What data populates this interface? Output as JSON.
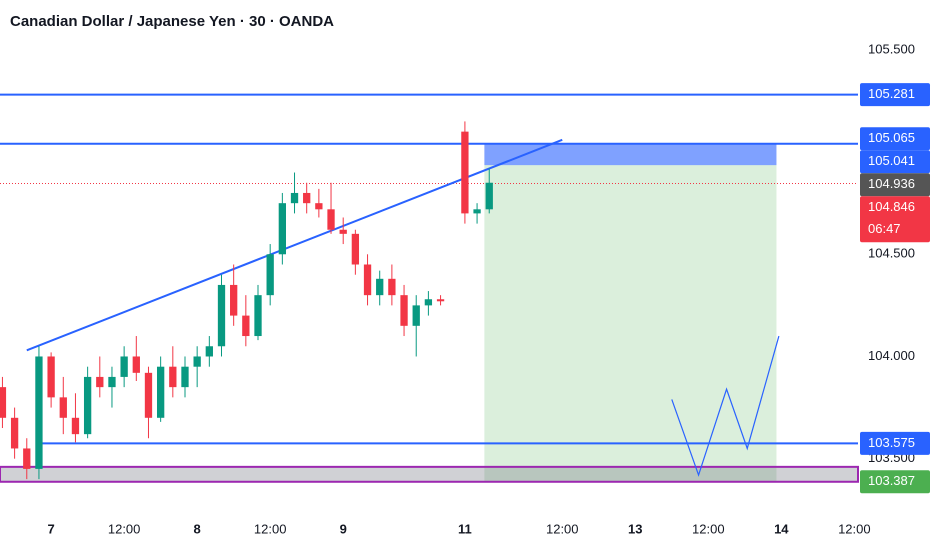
{
  "chart_data": {
    "type": "candlestick",
    "title": "Canadian Dollar / Japanese Yen · 30 · OANDA",
    "x": [
      0,
      1,
      2,
      3,
      4,
      5,
      6,
      7,
      8,
      9,
      10,
      11,
      12,
      13,
      14,
      15,
      16,
      17,
      18,
      19,
      20,
      21,
      22,
      23,
      24,
      25,
      26,
      27,
      28,
      29,
      30,
      31,
      32,
      33,
      34,
      35,
      36,
      38,
      39,
      40
    ],
    "open": [
      103.85,
      103.7,
      103.55,
      103.45,
      104.0,
      103.8,
      103.7,
      103.62,
      103.9,
      103.85,
      103.9,
      104.0,
      103.92,
      103.7,
      103.95,
      103.85,
      103.95,
      104.0,
      104.05,
      104.35,
      104.2,
      104.1,
      104.3,
      104.5,
      104.75,
      104.8,
      104.75,
      104.72,
      104.62,
      104.6,
      104.45,
      104.3,
      104.38,
      104.3,
      104.15,
      104.25,
      104.28,
      105.1,
      104.7,
      104.72
    ],
    "high": [
      103.9,
      103.75,
      103.6,
      104.05,
      104.02,
      103.9,
      103.82,
      103.95,
      104.0,
      103.95,
      104.05,
      104.1,
      103.95,
      104.0,
      104.05,
      104.0,
      104.05,
      104.1,
      104.4,
      104.45,
      104.3,
      104.35,
      104.55,
      104.8,
      104.9,
      104.85,
      104.82,
      104.85,
      104.68,
      104.62,
      104.5,
      104.42,
      104.45,
      104.35,
      104.3,
      104.32,
      104.3,
      105.15,
      104.75,
      104.92
    ],
    "low": [
      103.65,
      103.5,
      103.4,
      103.4,
      103.75,
      103.62,
      103.58,
      103.6,
      103.8,
      103.75,
      103.85,
      103.88,
      103.6,
      103.68,
      103.8,
      103.8,
      103.85,
      103.95,
      104.0,
      104.15,
      104.05,
      104.08,
      104.25,
      104.45,
      104.7,
      104.7,
      104.68,
      104.6,
      104.55,
      104.4,
      104.25,
      104.25,
      104.25,
      104.1,
      104.0,
      104.2,
      104.25,
      104.65,
      104.65,
      104.7
    ],
    "close": [
      103.7,
      103.55,
      103.45,
      104.0,
      103.8,
      103.7,
      103.62,
      103.9,
      103.85,
      103.9,
      104.0,
      103.92,
      103.7,
      103.95,
      103.85,
      103.95,
      104.0,
      104.05,
      104.35,
      104.2,
      104.1,
      104.3,
      104.5,
      104.75,
      104.8,
      104.75,
      104.72,
      104.62,
      104.6,
      104.45,
      104.3,
      104.38,
      104.3,
      104.15,
      104.25,
      104.28,
      104.27,
      104.7,
      104.72,
      104.85
    ],
    "up_color": "#089981",
    "down_color": "#f23645",
    "xlim": [
      -0.2,
      70.3
    ],
    "xticks": [
      {
        "value": 4,
        "label": "7"
      },
      {
        "value": 10,
        "label": "12:00"
      },
      {
        "value": 16,
        "label": "8"
      },
      {
        "value": 22,
        "label": "12:00"
      },
      {
        "value": 28,
        "label": "9"
      },
      {
        "value": 38,
        "label": "11"
      },
      {
        "value": 46,
        "label": "12:00"
      },
      {
        "value": 52,
        "label": "13"
      },
      {
        "value": 58,
        "label": "12:00"
      },
      {
        "value": 64,
        "label": "14"
      },
      {
        "value": 70,
        "label": "12:00"
      }
    ],
    "ylim": [
      103.2,
      105.744
    ],
    "yticks": [
      {
        "value": 105.5,
        "label": "105.500"
      },
      {
        "value": 104.5,
        "label": "104.500"
      },
      {
        "value": 104.0,
        "label": "104.000"
      },
      {
        "value": 103.5,
        "label": "103.500"
      }
    ],
    "levels": [
      {
        "value": 105.281,
        "color": "#2962ff"
      },
      {
        "value": 105.041,
        "color": "#2962ff"
      },
      {
        "value": 103.575,
        "color": "#2962ff"
      }
    ],
    "zone": {
      "low": 103.387,
      "high": 103.46,
      "color": "#9c27b0"
    },
    "trend_line": {
      "x": [
        2,
        46
      ],
      "y": [
        104.03,
        105.06
      ],
      "color": "#2962ff"
    },
    "position": {
      "x": [
        39.6,
        63.6
      ],
      "entry": 104.936,
      "stop": 105.041,
      "target": 103.387
    },
    "projection": {
      "x": [
        55,
        57.2,
        59.5,
        61.2,
        63.8
      ],
      "y": [
        103.79,
        103.42,
        103.84,
        103.55,
        104.1
      ]
    },
    "current": {
      "value": 104.846,
      "countdown": "06:47",
      "color": "#f23645"
    },
    "price_labels": [
      {
        "value": 105.281,
        "color": "#2962ff"
      },
      {
        "value": 105.065,
        "color": "#2962ff"
      },
      {
        "value": 105.041,
        "color": "#2962ff"
      },
      {
        "value": 104.936,
        "color": "#555555"
      },
      {
        "value": 103.575,
        "color": "#2962ff"
      },
      {
        "value": 103.387,
        "color": "#4caf50"
      }
    ]
  }
}
